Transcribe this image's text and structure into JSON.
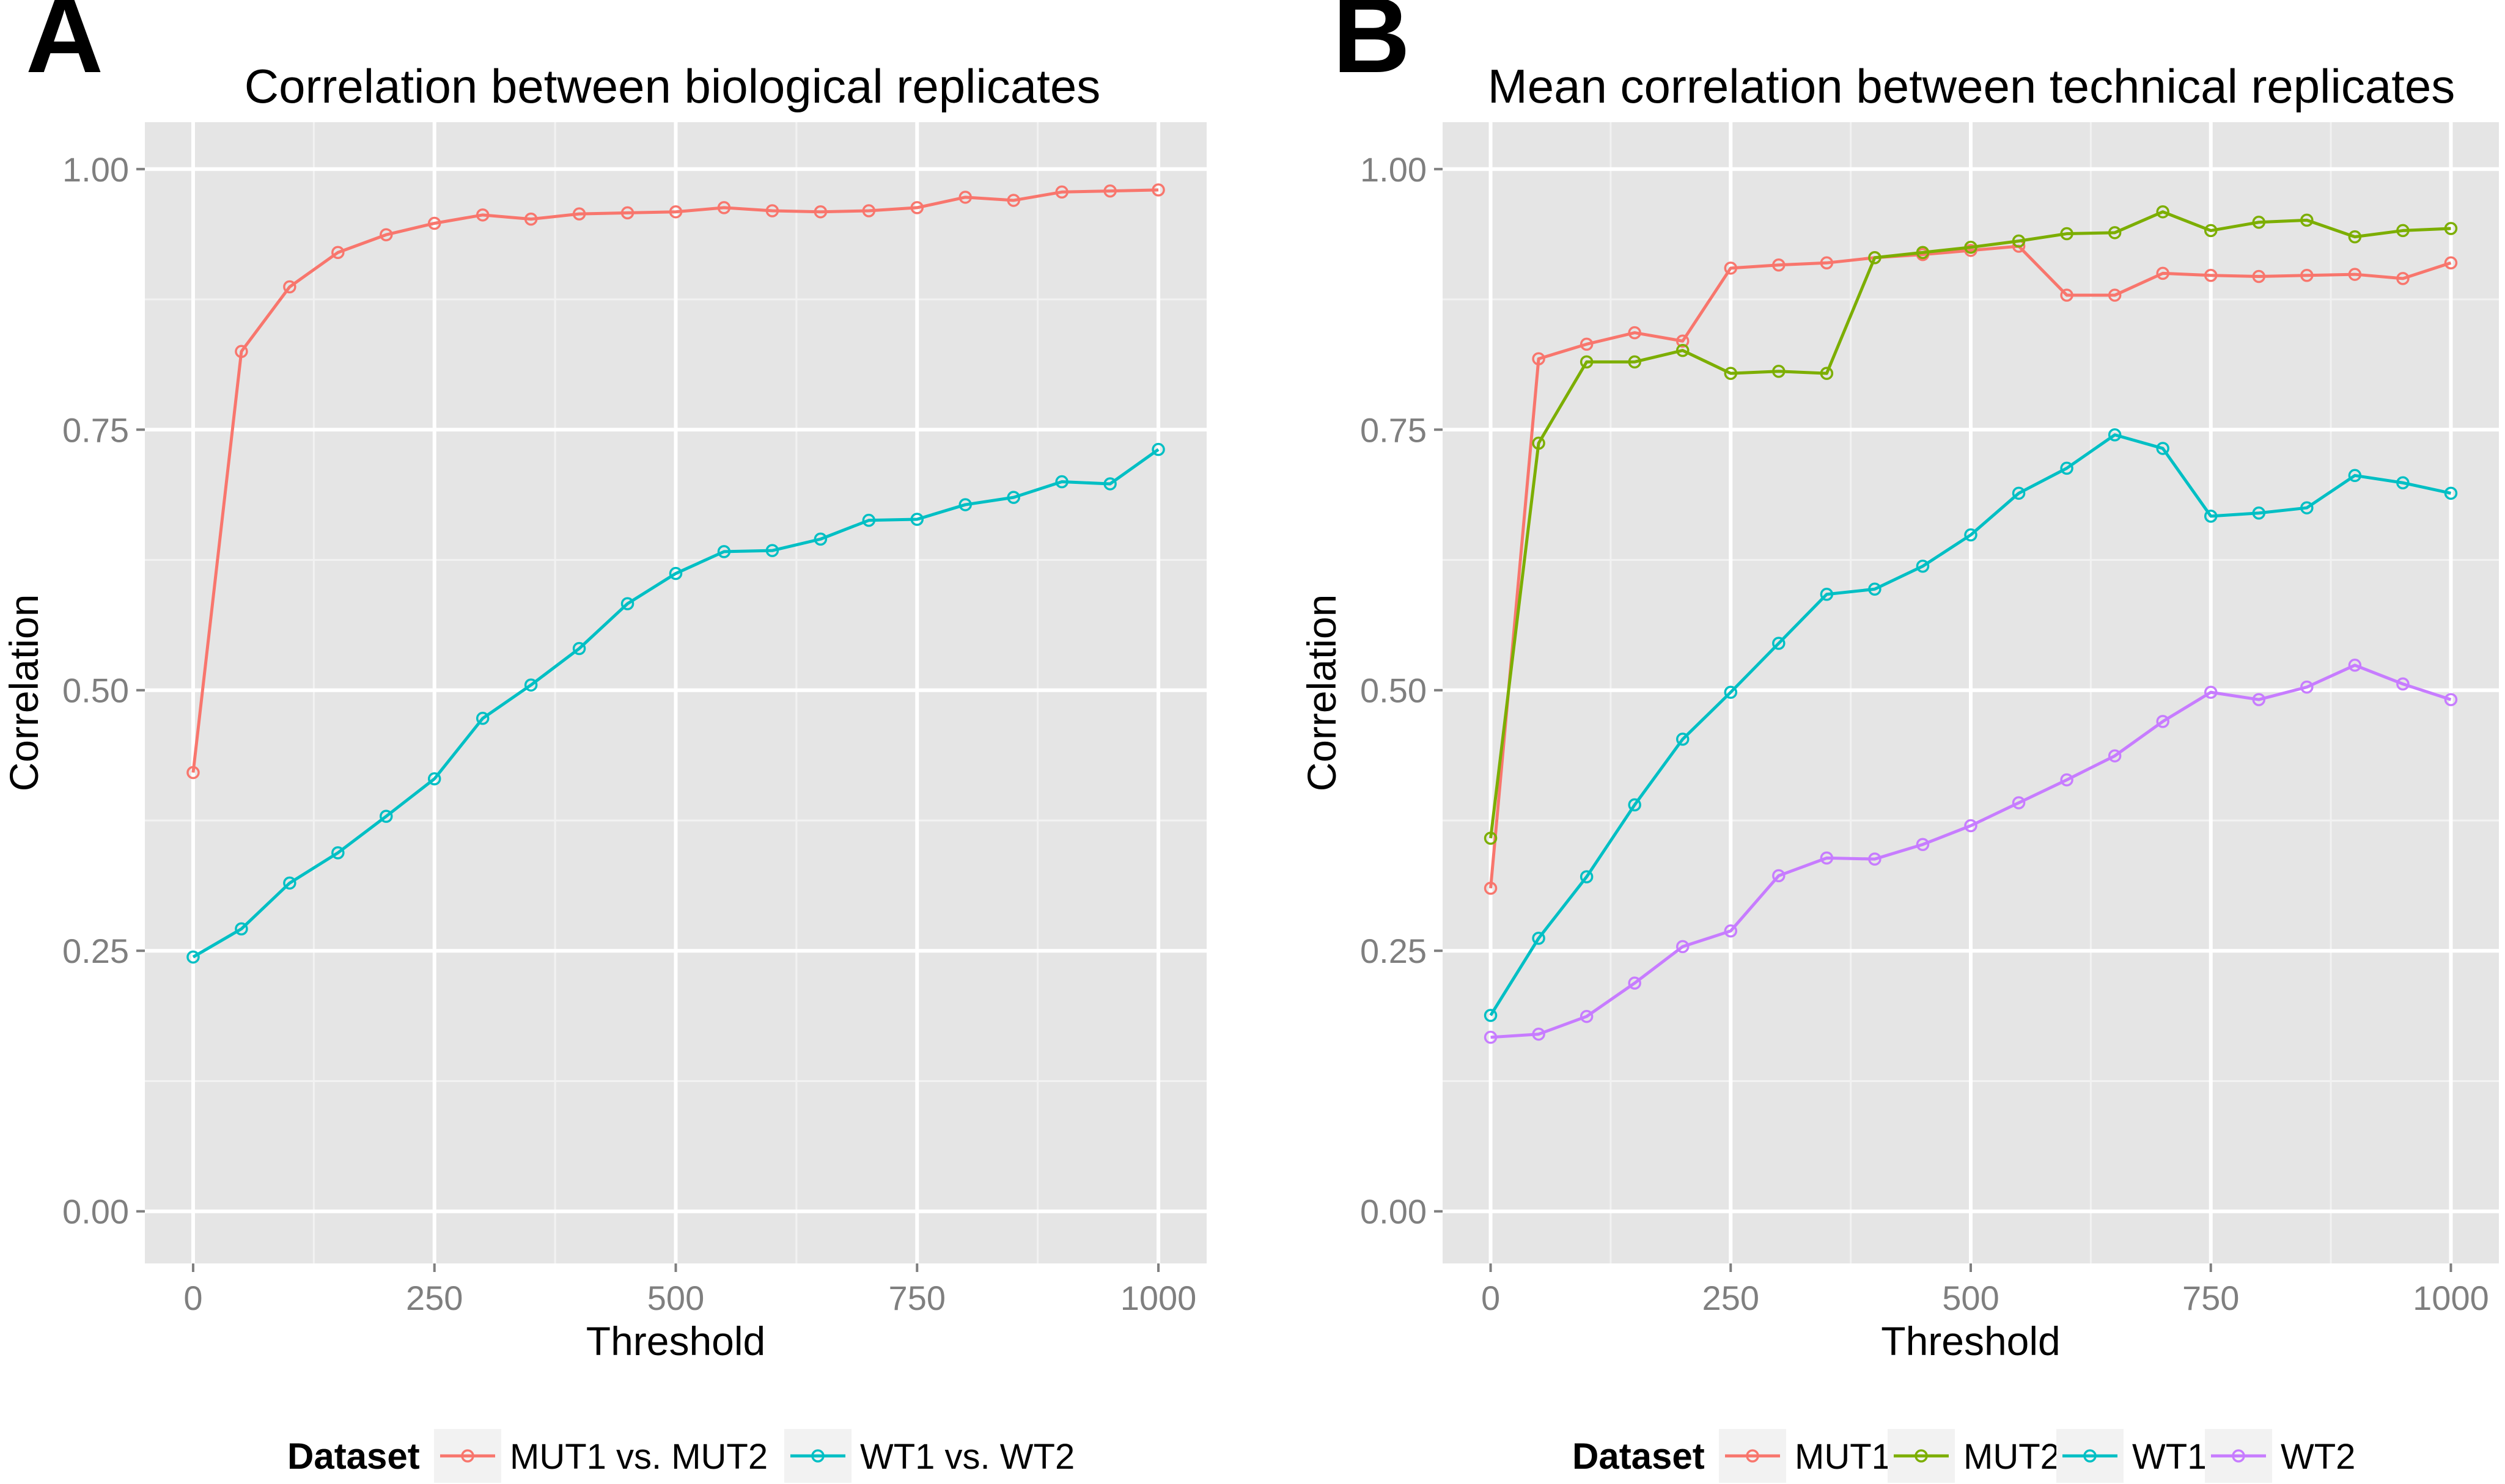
{
  "chart_data": [
    {
      "type": "line",
      "panel_label": "A",
      "title": "Correlation between biological replicates",
      "xlabel": "Threshold",
      "ylabel": "Correlation",
      "xlim": [
        -50,
        1050
      ],
      "ylim": [
        -0.05,
        1.045
      ],
      "xticks": [
        0,
        250,
        500,
        750,
        1000
      ],
      "xtick_labels": [
        "0",
        "250",
        "500",
        "750",
        "1000"
      ],
      "yticks": [
        0,
        0.25,
        0.5,
        0.75,
        1.0
      ],
      "ytick_labels": [
        "0.00",
        "0.25",
        "0.50",
        "0.75",
        "1.00"
      ],
      "grid": true,
      "legend_position": "bottom",
      "legend_title": "Dataset",
      "x": [
        0,
        50,
        100,
        150,
        200,
        250,
        300,
        350,
        400,
        450,
        500,
        550,
        600,
        650,
        700,
        750,
        800,
        850,
        900,
        950,
        1000
      ],
      "series": [
        {
          "name": "MUT1 vs. MUT2",
          "color": "#F8766D",
          "values": [
            0.421,
            0.825,
            0.887,
            0.92,
            0.937,
            0.948,
            0.956,
            0.952,
            0.957,
            0.958,
            0.959,
            0.963,
            0.96,
            0.959,
            0.96,
            0.963,
            0.973,
            0.97,
            0.978,
            0.979,
            0.98
          ]
        },
        {
          "name": "WT1 vs. WT2",
          "color": "#00BFC4",
          "values": [
            0.244,
            0.271,
            0.315,
            0.344,
            0.379,
            0.415,
            0.473,
            0.505,
            0.54,
            0.583,
            0.612,
            0.633,
            0.634,
            0.645,
            0.663,
            0.664,
            0.678,
            0.685,
            0.7,
            0.698,
            0.731
          ]
        }
      ]
    },
    {
      "type": "line",
      "panel_label": "B",
      "title": "Mean correlation between technical replicates",
      "xlabel": "Threshold",
      "ylabel": "Correlation",
      "xlim": [
        -50,
        1050
      ],
      "ylim": [
        -0.05,
        1.045
      ],
      "xticks": [
        0,
        250,
        500,
        750,
        1000
      ],
      "xtick_labels": [
        "0",
        "250",
        "500",
        "750",
        "1000"
      ],
      "yticks": [
        0,
        0.25,
        0.5,
        0.75,
        1.0
      ],
      "ytick_labels": [
        "0.00",
        "0.25",
        "0.50",
        "0.75",
        "1.00"
      ],
      "grid": true,
      "legend_position": "bottom",
      "legend_title": "Dataset",
      "x": [
        0,
        50,
        100,
        150,
        200,
        250,
        300,
        350,
        400,
        450,
        500,
        550,
        600,
        650,
        700,
        750,
        800,
        850,
        900,
        950,
        1000
      ],
      "series": [
        {
          "name": "MUT1",
          "color": "#F8766D",
          "values": [
            0.31,
            0.818,
            0.832,
            0.843,
            0.835,
            0.905,
            0.908,
            0.91,
            0.915,
            0.918,
            0.922,
            0.926,
            0.879,
            0.879,
            0.9,
            0.898,
            0.897,
            0.898,
            0.899,
            0.895,
            0.91
          ]
        },
        {
          "name": "MUT2",
          "color": "#7CAE00",
          "values": [
            0.358,
            0.737,
            0.815,
            0.815,
            0.826,
            0.804,
            0.806,
            0.804,
            0.915,
            0.92,
            0.925,
            0.931,
            0.938,
            0.939,
            0.959,
            0.941,
            0.949,
            0.951,
            0.935,
            0.941,
            0.943
          ]
        },
        {
          "name": "WT1",
          "color": "#00BFC4",
          "values": [
            0.188,
            0.262,
            0.321,
            0.39,
            0.453,
            0.498,
            0.545,
            0.592,
            0.597,
            0.619,
            0.649,
            0.689,
            0.713,
            0.745,
            0.732,
            0.667,
            0.67,
            0.675,
            0.706,
            0.699,
            0.689
          ]
        },
        {
          "name": "WT2",
          "color": "#C77CFF",
          "values": [
            0.167,
            0.17,
            0.187,
            0.219,
            0.254,
            0.269,
            0.322,
            0.339,
            0.338,
            0.352,
            0.37,
            0.392,
            0.414,
            0.437,
            0.47,
            0.498,
            0.491,
            0.503,
            0.524,
            0.506,
            0.491
          ]
        }
      ]
    }
  ]
}
